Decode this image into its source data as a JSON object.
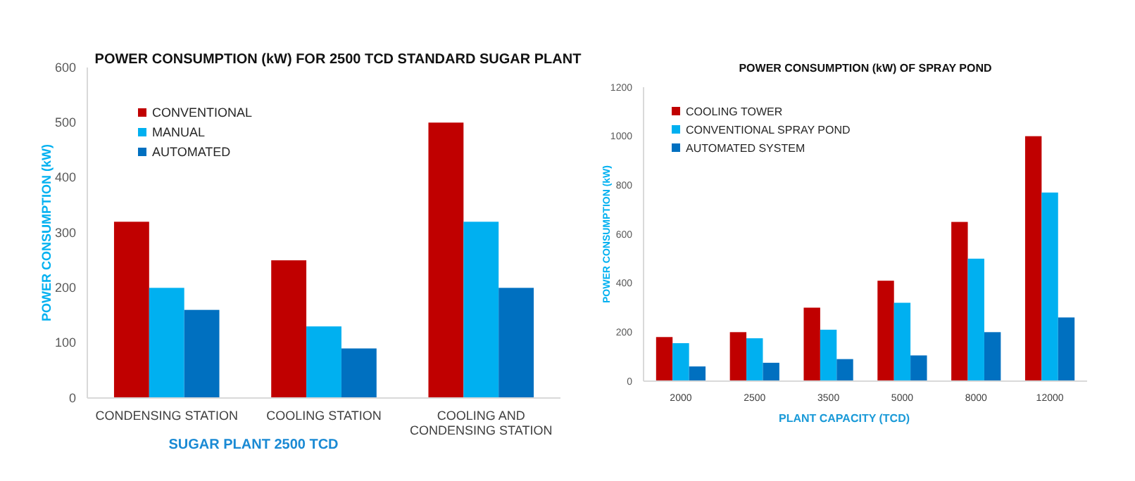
{
  "chart_data": [
    {
      "type": "bar",
      "title": "POWER CONSUMPTION (kW) FOR 2500 TCD STANDARD SUGAR PLANT",
      "xlabel": "SUGAR PLANT 2500 TCD",
      "ylabel": "POWER CONSUMPTION (kW)",
      "categories": [
        "CONDENSING STATION",
        "COOLING STATION",
        "COOLING AND CONDENSING STATION"
      ],
      "series": [
        {
          "name": "CONVENTIONAL",
          "color": "#c00000",
          "values": [
            320,
            250,
            500
          ]
        },
        {
          "name": "MANUAL",
          "color": "#00b0f0",
          "values": [
            200,
            130,
            320
          ]
        },
        {
          "name": "AUTOMATED",
          "color": "#0070c0",
          "values": [
            160,
            90,
            200
          ]
        }
      ],
      "ylim": [
        0,
        600
      ],
      "yticks": [
        0,
        100,
        200,
        300,
        400,
        500,
        600
      ],
      "grid": false,
      "legend": "top left"
    },
    {
      "type": "bar",
      "title": "POWER CONSUMPTION (kW) OF SPRAY POND",
      "xlabel": "PLANT CAPACITY (TCD)",
      "ylabel": "POWER CONSUMPTION (kW)",
      "categories": [
        "2000",
        "2500",
        "3500",
        "5000",
        "8000",
        "12000"
      ],
      "series": [
        {
          "name": "COOLING TOWER",
          "color": "#c00000",
          "values": [
            180,
            200,
            300,
            410,
            650,
            1000
          ]
        },
        {
          "name": "CONVENTIONAL SPRAY POND",
          "color": "#00b0f0",
          "values": [
            155,
            175,
            210,
            320,
            500,
            770
          ]
        },
        {
          "name": "AUTOMATED SYSTEM",
          "color": "#0070c0",
          "values": [
            60,
            75,
            90,
            105,
            200,
            260
          ]
        }
      ],
      "ylim": [
        0,
        1200
      ],
      "yticks": [
        0,
        200,
        400,
        600,
        800,
        1000,
        1200
      ],
      "grid": false,
      "legend": "top left"
    }
  ]
}
